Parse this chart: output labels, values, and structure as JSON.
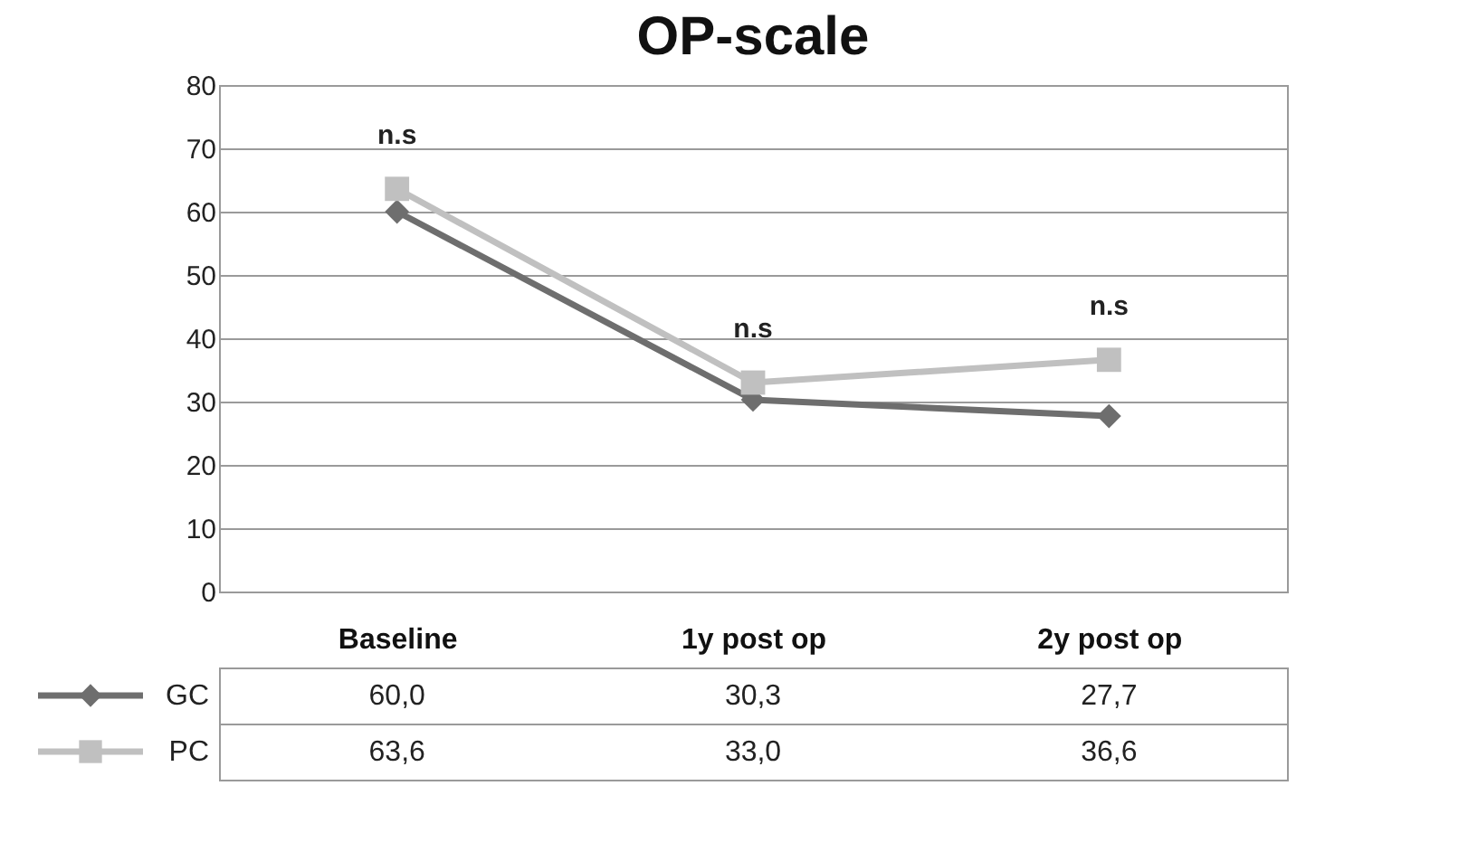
{
  "chart_data": {
    "type": "line",
    "title": "OP-scale",
    "categories": [
      "Baseline",
      "1y post op",
      "2y post op"
    ],
    "series": [
      {
        "name": "GC",
        "color": "#6e6e6e",
        "marker": "diamond",
        "values": [
          60.0,
          30.3,
          27.7
        ],
        "value_labels": [
          "60,0",
          "30,3",
          "27,7"
        ]
      },
      {
        "name": "PC",
        "color": "#c0c0c0",
        "marker": "square",
        "values": [
          63.6,
          33.0,
          36.6
        ],
        "value_labels": [
          "63,6",
          "33,0",
          "36,6"
        ]
      }
    ],
    "ylim": [
      0,
      80
    ],
    "yticks": [
      0,
      10,
      20,
      30,
      40,
      50,
      60,
      70,
      80
    ],
    "grid": "y",
    "legend": "bottom left",
    "data_labels": true,
    "annotations": [
      "n.s",
      "n.s",
      "n.s"
    ]
  }
}
